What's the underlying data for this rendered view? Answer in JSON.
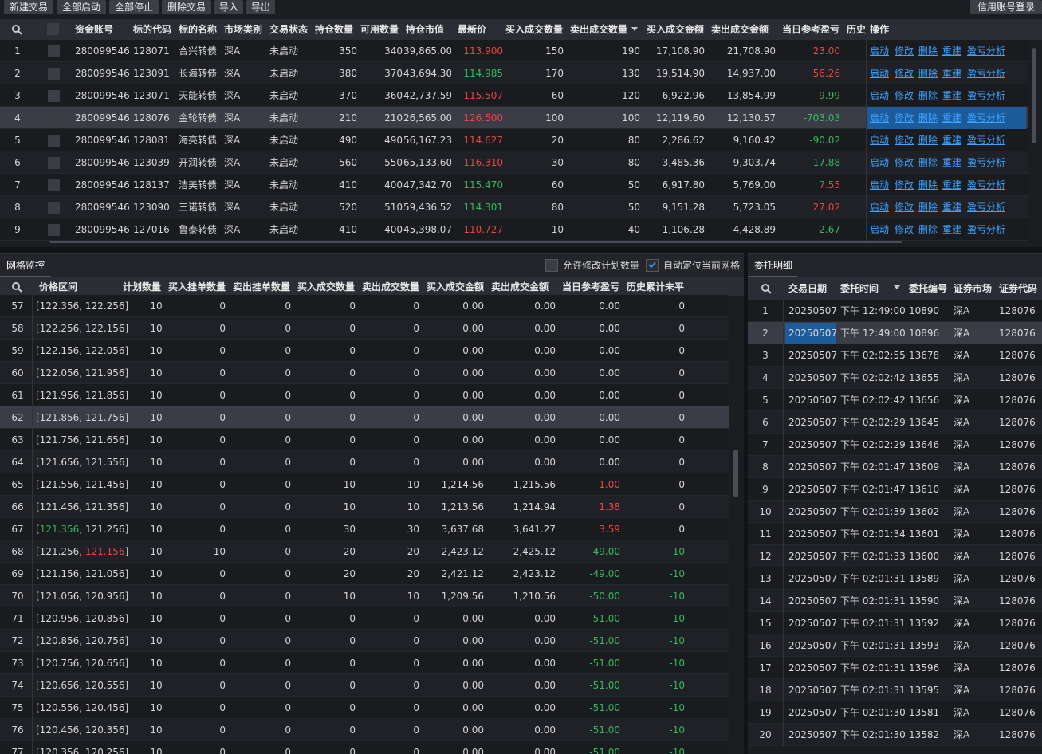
{
  "toolbar": {
    "buttons": [
      "新建交易",
      "全部启动",
      "全部停止",
      "删除交易",
      "导入",
      "导出"
    ],
    "right_button": "信用账号登录"
  },
  "positions": {
    "headers": [
      "资金账号",
      "标的代码",
      "标的名称",
      "市场类别",
      "交易状态",
      "持仓数量",
      "可用数量",
      "持仓市值",
      "最新价",
      "买入成交数量",
      "卖出成交数量",
      "买入成交金额",
      "卖出成交金额",
      "当日参考盈亏",
      "历史",
      "操作"
    ],
    "actions": [
      "启动",
      "修改",
      "删除",
      "重建",
      "盈亏分析"
    ],
    "rows": [
      [
        "1",
        "280099546",
        "128071",
        "合兴转债",
        "深A",
        "未启动",
        "350",
        "340",
        "39,865.00",
        "113.900",
        "150",
        "190",
        "17,108.90",
        "21,708.90",
        "23.00"
      ],
      [
        "2",
        "280099546",
        "123091",
        "长海转债",
        "深A",
        "未启动",
        "380",
        "370",
        "43,694.30",
        "114.985",
        "170",
        "130",
        "19,514.90",
        "14,937.00",
        "56.26"
      ],
      [
        "3",
        "280099546",
        "123071",
        "天能转债",
        "深A",
        "未启动",
        "370",
        "360",
        "42,737.59",
        "115.507",
        "60",
        "120",
        "6,922.96",
        "13,854.99",
        "-9.99"
      ],
      [
        "4",
        "280099546",
        "128076",
        "金轮转债",
        "深A",
        "未启动",
        "210",
        "210",
        "26,565.00",
        "126.500",
        "100",
        "100",
        "12,119.60",
        "12,130.57",
        "-703.03"
      ],
      [
        "5",
        "280099546",
        "128081",
        "海亮转债",
        "深A",
        "未启动",
        "490",
        "490",
        "56,167.23",
        "114.627",
        "20",
        "80",
        "2,286.62",
        "9,160.42",
        "-90.02"
      ],
      [
        "6",
        "280099546",
        "123039",
        "开润转债",
        "深A",
        "未启动",
        "560",
        "550",
        "65,133.60",
        "116.310",
        "30",
        "80",
        "3,485.36",
        "9,303.74",
        "-17.88"
      ],
      [
        "7",
        "280099546",
        "128137",
        "洁美转债",
        "深A",
        "未启动",
        "410",
        "400",
        "47,342.70",
        "115.470",
        "60",
        "50",
        "6,917.80",
        "5,769.00",
        "7.55"
      ],
      [
        "8",
        "280099546",
        "123090",
        "三诺转债",
        "深A",
        "未启动",
        "520",
        "510",
        "59,436.52",
        "114.301",
        "80",
        "50",
        "9,151.28",
        "5,723.05",
        "27.02"
      ],
      [
        "9",
        "280099546",
        "127016",
        "鲁泰转债",
        "深A",
        "未启动",
        "410",
        "400",
        "45,398.07",
        "110.727",
        "10",
        "40",
        "1,106.28",
        "4,428.89",
        "-2.67"
      ]
    ],
    "price_colors": [
      "#e84545",
      "#35b85c",
      "#e84545",
      "#e84545",
      "#e84545",
      "#e84545",
      "#35b85c",
      "#35b85c",
      "#e84545"
    ],
    "selected_row": 3
  },
  "grid_monitor": {
    "title": "网格监控",
    "options": [
      "允许修改计划数量",
      "自动定位当前网格"
    ],
    "options_checked": [
      false,
      true
    ],
    "headers": [
      "价格区间",
      "计划数量",
      "买入挂单数量",
      "卖出挂单数量",
      "买入成交数量",
      "卖出成交数量",
      "买入成交金额",
      "卖出成交金额",
      "当日参考盈亏",
      "历史累计未平"
    ],
    "rows": [
      [
        "57",
        "[122.356, 122.256]",
        "10",
        "0",
        "0",
        "0",
        "0",
        "0.00",
        "0.00",
        "0.00",
        "0"
      ],
      [
        "58",
        "[122.256, 122.156]",
        "10",
        "0",
        "0",
        "0",
        "0",
        "0.00",
        "0.00",
        "0.00",
        "0"
      ],
      [
        "59",
        "[122.156, 122.056]",
        "10",
        "0",
        "0",
        "0",
        "0",
        "0.00",
        "0.00",
        "0.00",
        "0"
      ],
      [
        "60",
        "[122.056, 121.956]",
        "10",
        "0",
        "0",
        "0",
        "0",
        "0.00",
        "0.00",
        "0.00",
        "0"
      ],
      [
        "61",
        "[121.956, 121.856]",
        "10",
        "0",
        "0",
        "0",
        "0",
        "0.00",
        "0.00",
        "0.00",
        "0"
      ],
      [
        "62",
        "[121.856, 121.756]",
        "10",
        "0",
        "0",
        "0",
        "0",
        "0.00",
        "0.00",
        "0.00",
        "0"
      ],
      [
        "63",
        "[121.756, 121.656]",
        "10",
        "0",
        "0",
        "0",
        "0",
        "0.00",
        "0.00",
        "0.00",
        "0"
      ],
      [
        "64",
        "[121.656, 121.556]",
        "10",
        "0",
        "0",
        "0",
        "0",
        "0.00",
        "0.00",
        "0.00",
        "0"
      ],
      [
        "65",
        "[121.556, 121.456]",
        "10",
        "0",
        "0",
        "10",
        "10",
        "1,214.56",
        "1,215.56",
        "1.00",
        "0"
      ],
      [
        "66",
        "[121.456, 121.356]",
        "10",
        "0",
        "0",
        "10",
        "10",
        "1,213.56",
        "1,214.94",
        "1.38",
        "0"
      ],
      [
        "67",
        [
          "[",
          {
            "text": "121.356",
            "color": "#35b85c"
          },
          ", 121.256]"
        ],
        "10",
        "0",
        "0",
        "30",
        "30",
        "3,637.68",
        "3,641.27",
        "3.59",
        "0"
      ],
      [
        "68",
        [
          "[121.256, ",
          {
            "text": "121.156",
            "color": "#e84545"
          },
          "]"
        ],
        "10",
        "10",
        "0",
        "20",
        "20",
        "2,423.12",
        "2,425.12",
        "-49.00",
        "-10"
      ],
      [
        "69",
        "[121.156, 121.056]",
        "10",
        "0",
        "0",
        "20",
        "20",
        "2,421.12",
        "2,423.12",
        "-49.00",
        "-10"
      ],
      [
        "70",
        "[121.056, 120.956]",
        "10",
        "0",
        "0",
        "10",
        "10",
        "1,209.56",
        "1,210.56",
        "-50.00",
        "-10"
      ],
      [
        "71",
        "[120.956, 120.856]",
        "10",
        "0",
        "0",
        "0",
        "0",
        "0.00",
        "0.00",
        "-51.00",
        "-10"
      ],
      [
        "72",
        "[120.856, 120.756]",
        "10",
        "0",
        "0",
        "0",
        "0",
        "0.00",
        "0.00",
        "-51.00",
        "-10"
      ],
      [
        "73",
        "[120.756, 120.656]",
        "10",
        "0",
        "0",
        "0",
        "0",
        "0.00",
        "0.00",
        "-51.00",
        "-10"
      ],
      [
        "74",
        "[120.656, 120.556]",
        "10",
        "0",
        "0",
        "0",
        "0",
        "0.00",
        "0.00",
        "-51.00",
        "-10"
      ],
      [
        "75",
        "[120.556, 120.456]",
        "10",
        "0",
        "0",
        "0",
        "0",
        "0.00",
        "0.00",
        "-51.00",
        "-10"
      ],
      [
        "76",
        "[120.456, 120.356]",
        "10",
        "0",
        "0",
        "0",
        "0",
        "0.00",
        "0.00",
        "-51.00",
        "-10"
      ],
      [
        "77",
        "[120.356, 120.256]",
        "10",
        "0",
        "0",
        "0",
        "0",
        "0.00",
        "0.00",
        "-51.00",
        "-10"
      ]
    ],
    "selected_row": 5
  },
  "orders": {
    "title": "委托明细",
    "headers": [
      "交易日期",
      "委托时间",
      "委托编号",
      "证券市场",
      "证券代码"
    ],
    "rows": [
      [
        "1",
        "20250507",
        "下午 12:49:00",
        "10890",
        "深A",
        "128076"
      ],
      [
        "2",
        "20250507",
        "下午 12:49:00",
        "10896",
        "深A",
        "128076"
      ],
      [
        "3",
        "20250507",
        "下午 02:02:55",
        "13678",
        "深A",
        "128076"
      ],
      [
        "4",
        "20250507",
        "下午 02:02:42",
        "13655",
        "深A",
        "128076"
      ],
      [
        "5",
        "20250507",
        "下午 02:02:42",
        "13656",
        "深A",
        "128076"
      ],
      [
        "6",
        "20250507",
        "下午 02:02:29",
        "13645",
        "深A",
        "128076"
      ],
      [
        "7",
        "20250507",
        "下午 02:02:29",
        "13646",
        "深A",
        "128076"
      ],
      [
        "8",
        "20250507",
        "下午 02:01:47",
        "13609",
        "深A",
        "128076"
      ],
      [
        "9",
        "20250507",
        "下午 02:01:47",
        "13610",
        "深A",
        "128076"
      ],
      [
        "10",
        "20250507",
        "下午 02:01:39",
        "13602",
        "深A",
        "128076"
      ],
      [
        "11",
        "20250507",
        "下午 02:01:34",
        "13601",
        "深A",
        "128076"
      ],
      [
        "12",
        "20250507",
        "下午 02:01:33",
        "13600",
        "深A",
        "128076"
      ],
      [
        "13",
        "20250507",
        "下午 02:01:31",
        "13589",
        "深A",
        "128076"
      ],
      [
        "14",
        "20250507",
        "下午 02:01:31",
        "13590",
        "深A",
        "128076"
      ],
      [
        "15",
        "20250507",
        "下午 02:01:31",
        "13592",
        "深A",
        "128076"
      ],
      [
        "16",
        "20250507",
        "下午 02:01:31",
        "13593",
        "深A",
        "128076"
      ],
      [
        "17",
        "20250507",
        "下午 02:01:31",
        "13596",
        "深A",
        "128076"
      ],
      [
        "18",
        "20250507",
        "下午 02:01:31",
        "13595",
        "深A",
        "128076"
      ],
      [
        "19",
        "20250507",
        "下午 02:01:30",
        "13581",
        "深A",
        "128076"
      ],
      [
        "20",
        "20250507",
        "下午 02:01:30",
        "13582",
        "深A",
        "128076"
      ]
    ],
    "selected_row": 1
  }
}
